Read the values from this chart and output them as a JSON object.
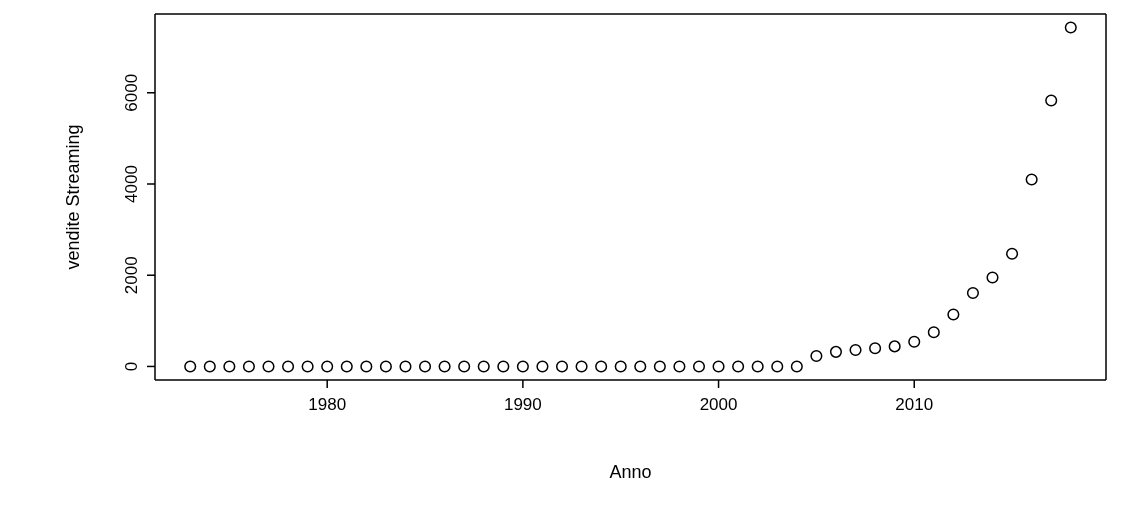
{
  "chart_data": {
    "type": "scatter",
    "xlabel": "Anno",
    "ylabel": "vendite Streaming",
    "x": [
      1973,
      1974,
      1975,
      1976,
      1977,
      1978,
      1979,
      1980,
      1981,
      1982,
      1983,
      1984,
      1985,
      1986,
      1987,
      1988,
      1989,
      1990,
      1991,
      1992,
      1993,
      1994,
      1995,
      1996,
      1997,
      1998,
      1999,
      2000,
      2001,
      2002,
      2003,
      2004,
      2005,
      2006,
      2007,
      2008,
      2009,
      2010,
      2011,
      2012,
      2013,
      2014,
      2015,
      2016,
      2017,
      2018
    ],
    "series": [
      {
        "color": "#000000",
        "values": [
          0,
          0,
          0,
          0,
          0,
          0,
          0,
          0,
          0,
          0,
          0,
          0,
          0,
          0,
          0,
          0,
          0,
          0,
          0,
          0,
          0,
          0,
          0,
          0,
          0,
          0,
          0,
          0,
          0,
          0,
          0,
          0,
          230,
          320,
          360,
          400,
          440,
          540,
          750,
          1140,
          1610,
          1950,
          2470,
          4100,
          5830,
          7430
        ]
      }
    ],
    "xlim": [
      1971.2,
      2019.8
    ],
    "xticks": [
      1980,
      1990,
      2000,
      2010
    ],
    "ylim": [
      -297,
      7727
    ],
    "yticks": [
      0,
      2000,
      4000,
      6000
    ],
    "grid": false,
    "marker": "circle"
  }
}
